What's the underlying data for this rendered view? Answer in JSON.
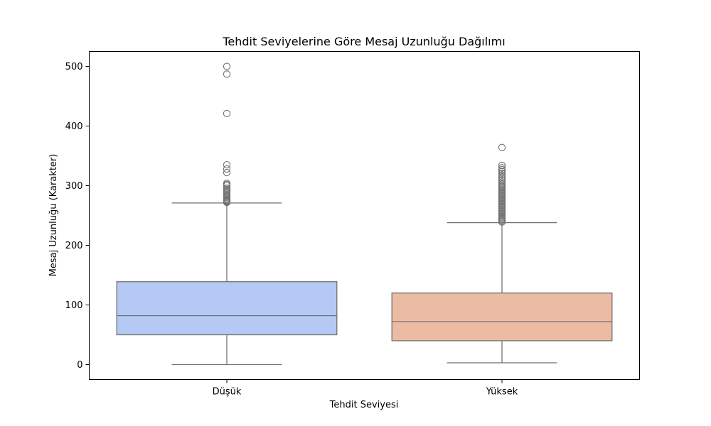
{
  "chart_data": {
    "type": "box",
    "title": "Tehdit Seviyelerine Göre Mesaj Uzunluğu Dağılımı",
    "xlabel": "Tehdit Seviyesi",
    "ylabel": "Mesaj Uzunluğu (Karakter)",
    "ylim": [
      -25,
      525
    ],
    "yticks": [
      0,
      100,
      200,
      300,
      400,
      500
    ],
    "grid": false,
    "categories": [
      "Düşük",
      "Yüksek"
    ],
    "boxes": [
      {
        "category": "Düşük",
        "color": "#b4c9f4",
        "whisker_low": 0,
        "q1": 50,
        "median": 82,
        "q3": 139,
        "whisker_high": 271,
        "outliers": [
          272,
          273,
          274,
          275,
          276,
          278,
          280,
          282,
          284,
          286,
          288,
          290,
          292,
          294,
          296,
          300,
          302,
          304,
          322,
          328,
          335,
          421,
          487,
          500
        ]
      },
      {
        "category": "Yüksek",
        "color": "#ecbba3",
        "whisker_low": 3,
        "q1": 40,
        "median": 72,
        "q3": 120,
        "whisker_high": 238,
        "outliers": [
          239,
          241,
          243,
          245,
          247,
          249,
          251,
          253,
          255,
          257,
          259,
          261,
          263,
          265,
          267,
          269,
          271,
          273,
          275,
          277,
          279,
          281,
          283,
          285,
          287,
          289,
          291,
          293,
          295,
          297,
          299,
          301,
          303,
          306,
          309,
          312,
          315,
          318,
          321,
          324,
          327,
          330,
          334,
          364
        ]
      }
    ]
  }
}
